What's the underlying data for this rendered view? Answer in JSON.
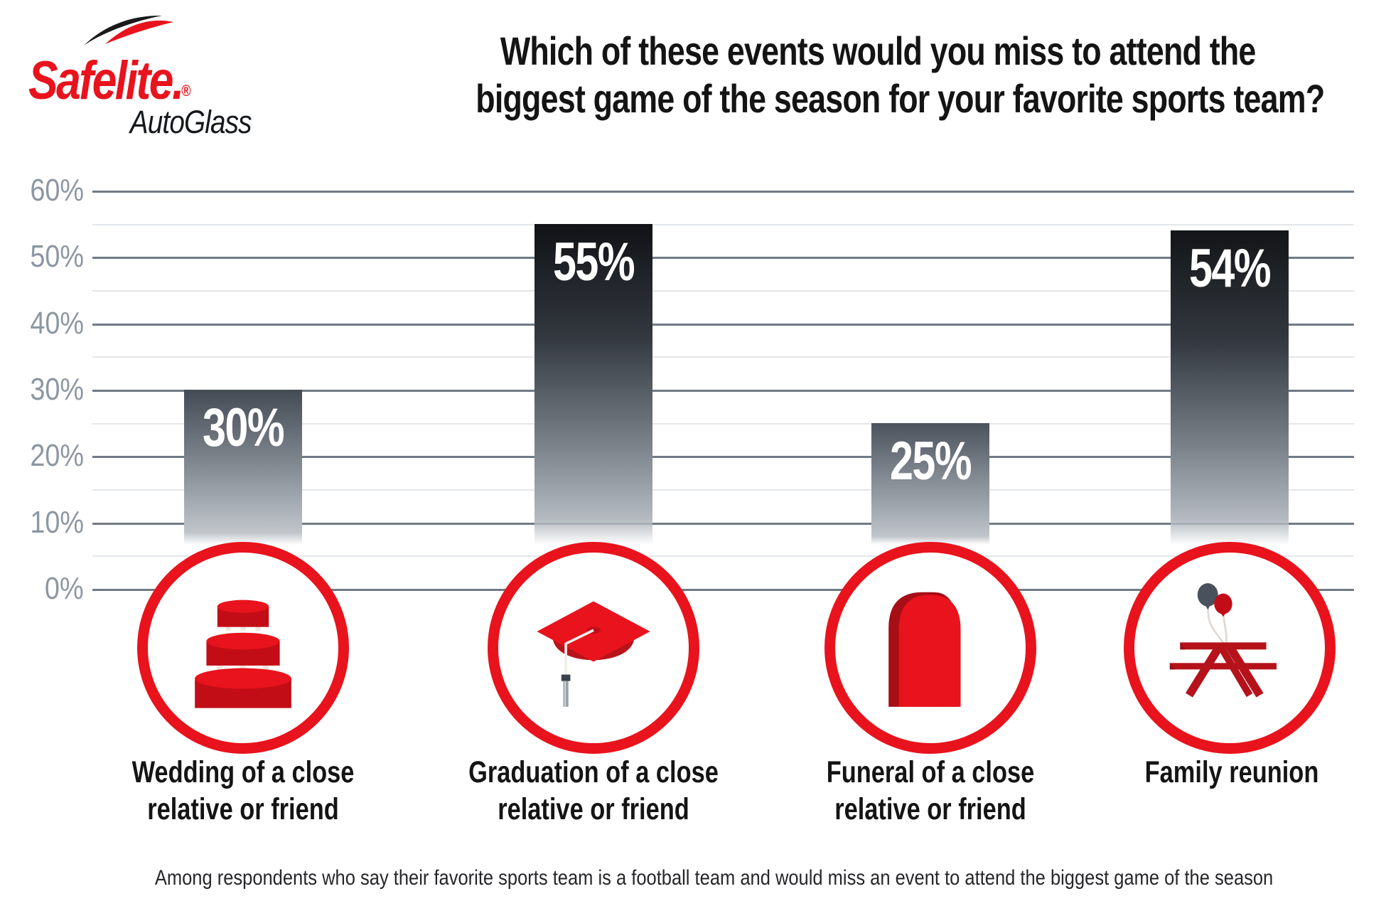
{
  "logo": {
    "wordmark": "Safelite",
    "period": ".",
    "registered": "®",
    "sub": "AutoGlass"
  },
  "title": {
    "line1": "Which of these events would you miss to attend the",
    "line2": "biggest game of the season for your favorite sports team?"
  },
  "chart_data": {
    "type": "bar",
    "title": "Which of these events would you miss to attend the biggest game of the season for your favorite sports team?",
    "categories": [
      "Wedding of a close relative or friend",
      "Graduation of a close relative or friend",
      "Funeral of a close relative or friend",
      "Family reunion"
    ],
    "values": [
      30,
      55,
      25,
      54
    ],
    "value_labels": [
      "30%",
      "55%",
      "25%",
      "54%"
    ],
    "unit": "%",
    "xlabel": "",
    "ylabel": "",
    "ylim": [
      0,
      60
    ],
    "y_ticks": [
      {
        "label": "60%",
        "value": 60
      },
      {
        "label": "50%",
        "value": 50
      },
      {
        "label": "40%",
        "value": 40
      },
      {
        "label": "30%",
        "value": 30
      },
      {
        "label": "20%",
        "value": 20
      },
      {
        "label": "10%",
        "value": 10
      },
      {
        "label": "0%",
        "value": 0
      }
    ],
    "minor_gridline_step": 5,
    "major_gridline_step": 10,
    "grid": "on",
    "legend": "none",
    "icons": [
      "wedding-cake-icon",
      "graduation-cap-icon",
      "tombstone-icon",
      "picnic-table-balloons-icon"
    ]
  },
  "bars": [
    {
      "value": 30,
      "value_label": "30%",
      "label_line1": "Wedding of a close",
      "label_line2": "relative or friend",
      "icon": "wedding-cake"
    },
    {
      "value": 55,
      "value_label": "55%",
      "label_line1": "Graduation of a close",
      "label_line2": "relative or friend",
      "icon": "graduation-cap"
    },
    {
      "value": 25,
      "value_label": "25%",
      "label_line1": "Funeral of a close",
      "label_line2": "relative or friend",
      "icon": "tombstone"
    },
    {
      "value": 54,
      "value_label": "54%",
      "label_line1": "Family reunion",
      "label_line2": "",
      "icon": "picnic-table-balloons"
    }
  ],
  "footnote": "Among respondents who say their favorite sports team is a football team and would miss an event to attend the biggest game of the season",
  "colors": {
    "brand_red": "#e8131c",
    "dark_red": "#b5121b",
    "deep_red": "#a50f15",
    "cake_body_red": "#c20d16",
    "tick_gray": "#8d97a3",
    "major_gridline": "#6f7a86",
    "minor_gridline": "#e3e6ea",
    "bar_gradient_dark": "#111316",
    "bar_gradient_light": "#b9bfc5",
    "balloon_slate": "#49525c",
    "title_black": "#141414"
  }
}
